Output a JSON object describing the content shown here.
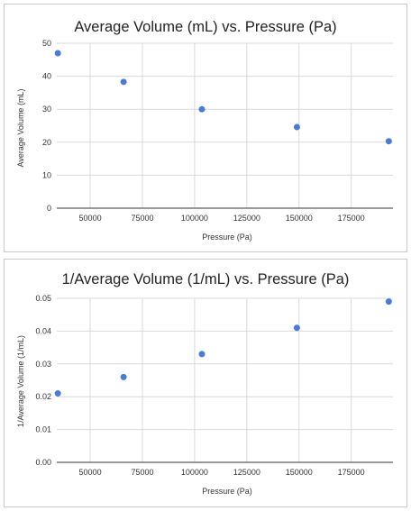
{
  "chart_data": [
    {
      "type": "scatter",
      "title": "Average Volume (mL) vs. Pressure (Pa)",
      "xlabel": "Pressure (Pa)",
      "ylabel": "Average Volume (mL)",
      "xlim": [
        34000,
        195000
      ],
      "ylim": [
        0,
        50
      ],
      "xticks": [
        50000,
        75000,
        100000,
        125000,
        150000,
        175000
      ],
      "yticks": [
        0,
        10,
        20,
        30,
        40,
        50
      ],
      "ytick_decimals": 0,
      "grid": true,
      "series": [
        {
          "color": "#4a7bd0",
          "points": [
            {
              "x": 34500,
              "y": 47
            },
            {
              "x": 66000,
              "y": 38.3
            },
            {
              "x": 103500,
              "y": 30
            },
            {
              "x": 149000,
              "y": 24.6
            },
            {
              "x": 193000,
              "y": 20.3
            }
          ]
        }
      ]
    },
    {
      "type": "scatter",
      "title": "1/Average Volume (1/mL) vs. Pressure (Pa)",
      "xlabel": "Pressure (Pa)",
      "ylabel": "1/Average Volume (1/mL)",
      "xlim": [
        34000,
        195000
      ],
      "ylim": [
        0,
        0.05
      ],
      "xticks": [
        50000,
        75000,
        100000,
        125000,
        150000,
        175000
      ],
      "yticks": [
        0,
        0.01,
        0.02,
        0.03,
        0.04,
        0.05
      ],
      "ytick_decimals": 2,
      "grid": true,
      "series": [
        {
          "color": "#4a7bd0",
          "points": [
            {
              "x": 34500,
              "y": 0.021
            },
            {
              "x": 66000,
              "y": 0.026
            },
            {
              "x": 103500,
              "y": 0.033
            },
            {
              "x": 149000,
              "y": 0.041
            },
            {
              "x": 193000,
              "y": 0.049
            }
          ]
        }
      ]
    }
  ]
}
